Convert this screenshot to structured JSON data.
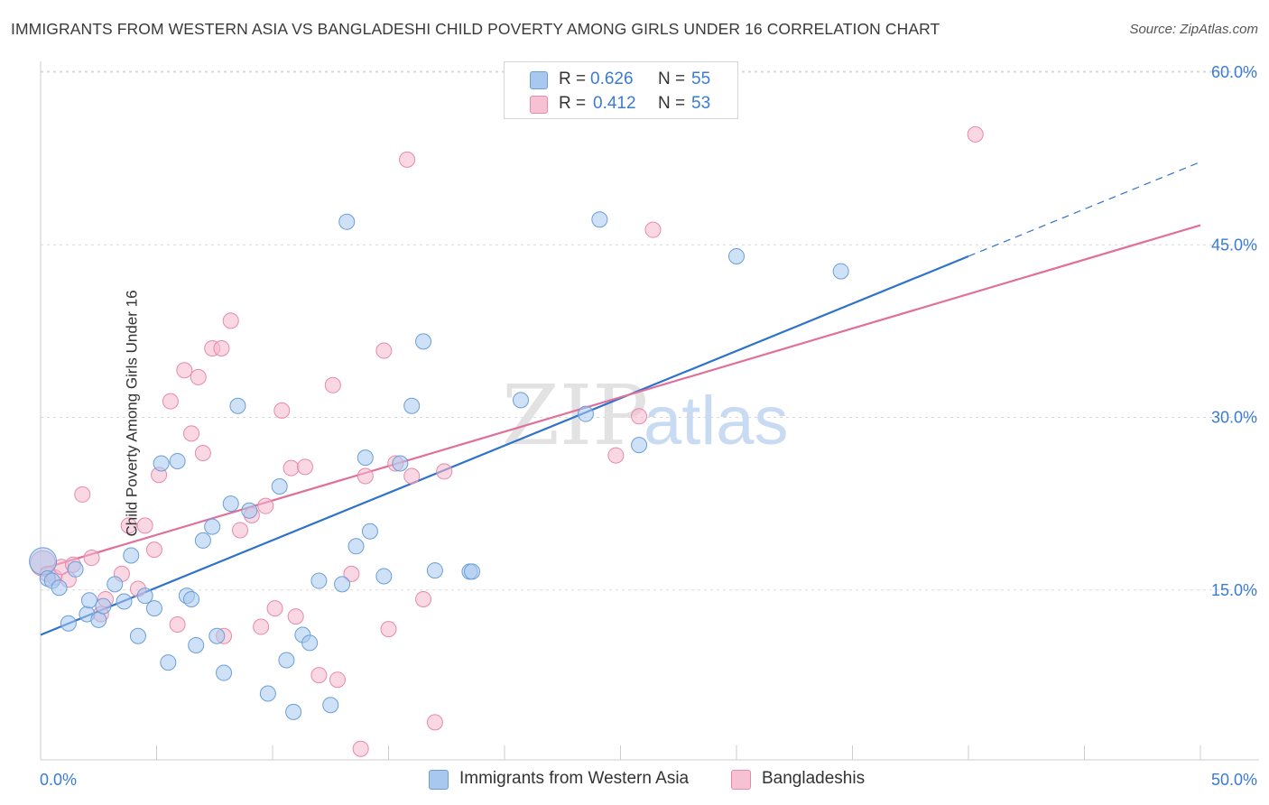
{
  "title": "IMMIGRANTS FROM WESTERN ASIA VS BANGLADESHI CHILD POVERTY AMONG GIRLS UNDER 16 CORRELATION CHART",
  "source": "Source: ZipAtlas.com",
  "watermark": {
    "zip": "ZIP",
    "atlas": "atlas"
  },
  "legend": {
    "r_label": "R =",
    "n_label": "N =",
    "rows": [
      {
        "r": "0.626",
        "n": "55"
      },
      {
        "r": "0.412",
        "n": "53"
      }
    ]
  },
  "colors": {
    "blue_fill": "#a8c8f0",
    "blue_stroke": "#6a9fd8",
    "blue_line": "#2f72cc",
    "pink_fill": "#f6b8cc",
    "pink_stroke": "#e78aa8",
    "pink_line": "#e0709a",
    "axis_text": "#3a7bd5",
    "grid": "#d9d9d9"
  },
  "chart_data": {
    "type": "scatter",
    "title": "IMMIGRANTS FROM WESTERN ASIA VS BANGLADESHI CHILD POVERTY AMONG GIRLS UNDER 16 CORRELATION CHART",
    "xlabel": "",
    "ylabel": "Child Poverty Among Girls Under 16",
    "xlim": [
      0,
      50
    ],
    "ylim": [
      0,
      61
    ],
    "x_tick_labels": [
      "0.0%",
      "50.0%"
    ],
    "y_ticks": [
      15,
      30,
      45,
      60
    ],
    "y_tick_labels": [
      "15.0%",
      "30.0%",
      "45.0%",
      "60.0%"
    ],
    "grid": true,
    "legend_position": "top-center",
    "series": [
      {
        "name": "Immigrants from Western Asia",
        "points": [
          [
            0.1,
            17.5
          ],
          [
            0.3,
            16.0
          ],
          [
            0.5,
            15.8
          ],
          [
            0.8,
            15.2
          ],
          [
            1.2,
            12.1
          ],
          [
            1.5,
            16.8
          ],
          [
            2.0,
            12.9
          ],
          [
            2.1,
            14.1
          ],
          [
            2.5,
            12.4
          ],
          [
            2.7,
            13.6
          ],
          [
            3.2,
            15.5
          ],
          [
            3.6,
            14.0
          ],
          [
            3.9,
            18.0
          ],
          [
            4.2,
            11.0
          ],
          [
            4.5,
            14.5
          ],
          [
            4.9,
            13.4
          ],
          [
            5.2,
            26.0
          ],
          [
            5.5,
            8.7
          ],
          [
            5.9,
            26.2
          ],
          [
            6.3,
            14.5
          ],
          [
            6.5,
            14.2
          ],
          [
            6.7,
            10.2
          ],
          [
            7.0,
            19.3
          ],
          [
            7.4,
            20.5
          ],
          [
            7.6,
            11.0
          ],
          [
            7.9,
            7.8
          ],
          [
            8.2,
            22.5
          ],
          [
            8.5,
            31.0
          ],
          [
            9.0,
            21.9
          ],
          [
            9.8,
            6.0
          ],
          [
            10.3,
            24.0
          ],
          [
            10.6,
            8.9
          ],
          [
            10.9,
            4.4
          ],
          [
            11.3,
            11.1
          ],
          [
            11.6,
            10.4
          ],
          [
            12.0,
            15.8
          ],
          [
            12.5,
            5.0
          ],
          [
            13.0,
            15.5
          ],
          [
            13.2,
            47.0
          ],
          [
            13.6,
            18.8
          ],
          [
            14.0,
            26.5
          ],
          [
            14.2,
            20.1
          ],
          [
            14.8,
            16.2
          ],
          [
            15.5,
            26.0
          ],
          [
            16.0,
            31.0
          ],
          [
            16.5,
            36.6
          ],
          [
            17.0,
            16.7
          ],
          [
            18.5,
            16.6
          ],
          [
            18.6,
            16.6
          ],
          [
            20.7,
            31.5
          ],
          [
            23.5,
            30.3
          ],
          [
            24.1,
            47.2
          ],
          [
            25.8,
            27.6
          ],
          [
            30.0,
            44.0
          ],
          [
            34.5,
            42.7
          ]
        ]
      },
      {
        "name": "Bangladeshis",
        "points": [
          [
            0.1,
            17.3
          ],
          [
            0.3,
            16.4
          ],
          [
            0.6,
            16.1
          ],
          [
            0.9,
            17.0
          ],
          [
            1.2,
            15.9
          ],
          [
            1.4,
            17.2
          ],
          [
            1.8,
            23.3
          ],
          [
            2.2,
            17.8
          ],
          [
            2.6,
            12.9
          ],
          [
            2.8,
            14.2
          ],
          [
            3.5,
            16.4
          ],
          [
            3.8,
            20.6
          ],
          [
            4.2,
            15.1
          ],
          [
            4.5,
            20.6
          ],
          [
            4.9,
            18.5
          ],
          [
            5.1,
            25.0
          ],
          [
            5.6,
            31.4
          ],
          [
            5.9,
            12.0
          ],
          [
            6.2,
            34.1
          ],
          [
            6.5,
            28.6
          ],
          [
            6.8,
            33.5
          ],
          [
            7.0,
            26.9
          ],
          [
            7.4,
            36.0
          ],
          [
            7.8,
            36.0
          ],
          [
            7.9,
            11.0
          ],
          [
            8.2,
            38.4
          ],
          [
            8.6,
            20.2
          ],
          [
            9.1,
            21.5
          ],
          [
            9.5,
            11.8
          ],
          [
            9.7,
            22.3
          ],
          [
            10.1,
            13.4
          ],
          [
            10.4,
            30.6
          ],
          [
            10.8,
            25.6
          ],
          [
            11.0,
            12.7
          ],
          [
            11.4,
            25.7
          ],
          [
            12.0,
            7.6
          ],
          [
            12.6,
            32.8
          ],
          [
            12.8,
            7.2
          ],
          [
            13.4,
            16.4
          ],
          [
            13.8,
            1.2
          ],
          [
            14.0,
            24.9
          ],
          [
            14.8,
            35.8
          ],
          [
            15.0,
            11.6
          ],
          [
            15.3,
            26.0
          ],
          [
            15.8,
            52.4
          ],
          [
            16.0,
            24.9
          ],
          [
            16.5,
            14.2
          ],
          [
            17.0,
            3.5
          ],
          [
            17.4,
            25.3
          ],
          [
            24.8,
            26.7
          ],
          [
            25.8,
            30.1
          ],
          [
            26.4,
            46.3
          ],
          [
            40.3,
            54.6
          ]
        ]
      }
    ],
    "trend_lines": [
      {
        "series": "Immigrants from Western Asia",
        "x": [
          0,
          40,
          50
        ],
        "y": [
          11.1,
          44.0,
          52.2
        ],
        "dashed_after_x": 40
      },
      {
        "series": "Bangladeshis",
        "x": [
          0,
          50
        ],
        "y": [
          16.8,
          46.7
        ]
      }
    ]
  }
}
